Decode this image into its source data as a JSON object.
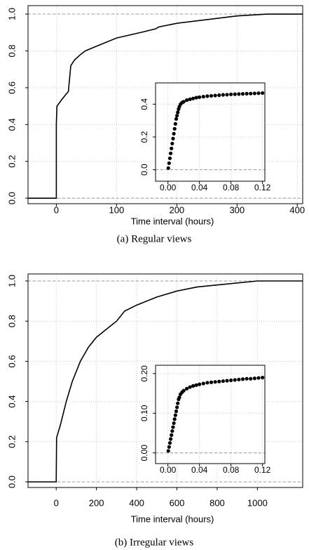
{
  "chart_data": [
    {
      "type": "line",
      "caption": "(a)  Regular views",
      "xlabel": "Time interval (hours)",
      "color": "#000000",
      "grid": true,
      "hlines": [
        0,
        1
      ],
      "x": [
        -47,
        0,
        0,
        1,
        10,
        20,
        24,
        30,
        40,
        48,
        70,
        100,
        140,
        165,
        170,
        200,
        250,
        300,
        350,
        409
      ],
      "values": [
        0,
        0,
        0.4,
        0.5,
        0.54,
        0.58,
        0.72,
        0.75,
        0.78,
        0.8,
        0.83,
        0.87,
        0.9,
        0.92,
        0.93,
        0.95,
        0.97,
        0.99,
        1.0,
        1.0
      ],
      "xlim": [
        -47,
        409
      ],
      "ylim": [
        -0.03,
        1.046
      ],
      "xticks": [
        0,
        100,
        200,
        300,
        400
      ],
      "yticks": [
        {
          "value": 0,
          "label": "0.0"
        },
        {
          "value": 0.2,
          "label": "0.2"
        },
        {
          "value": 0.4,
          "label": "0.4"
        },
        {
          "value": 0.6,
          "label": "0.6"
        },
        {
          "value": 0.8,
          "label": "0.8"
        },
        {
          "value": 1,
          "label": "1.0"
        }
      ]
    },
    {
      "type": "scatter",
      "color": "#000000",
      "grid": true,
      "hlines": [
        0
      ],
      "x": [
        0.0005,
        0.0015,
        0.0025,
        0.0035,
        0.0045,
        0.0055,
        0.0065,
        0.0075,
        0.0085,
        0.0095,
        0.0105,
        0.0115,
        0.0125,
        0.0135,
        0.0145,
        0.016,
        0.018,
        0.02,
        0.024,
        0.028,
        0.032,
        0.036,
        0.04,
        0.045,
        0.05,
        0.055,
        0.06,
        0.065,
        0.07,
        0.075,
        0.08,
        0.085,
        0.09,
        0.095,
        0.1,
        0.105,
        0.11,
        0.115,
        0.12
      ],
      "values": [
        0.01,
        0.04,
        0.07,
        0.1,
        0.13,
        0.16,
        0.19,
        0.22,
        0.25,
        0.28,
        0.31,
        0.33,
        0.35,
        0.37,
        0.385,
        0.4,
        0.41,
        0.415,
        0.425,
        0.43,
        0.435,
        0.44,
        0.443,
        0.446,
        0.449,
        0.451,
        0.453,
        0.455,
        0.457,
        0.458,
        0.46,
        0.461,
        0.462,
        0.463,
        0.464,
        0.465,
        0.466,
        0.467,
        0.468
      ],
      "xlim": [
        -0.0157,
        0.123
      ],
      "ylim": [
        -0.07,
        0.53
      ],
      "xticks": [
        {
          "value": 0,
          "label": "0.00"
        },
        {
          "value": 0.04,
          "label": "0.04"
        },
        {
          "value": 0.08,
          "label": "0.08"
        },
        {
          "value": 0.12,
          "label": "0.12"
        }
      ],
      "yticks": [
        {
          "value": 0,
          "label": "0.0"
        },
        0.2,
        0.4
      ]
    },
    {
      "type": "line",
      "caption": "(b)  Irregular views",
      "xlabel": "Time interval (hours)",
      "color": "#000000",
      "grid": true,
      "hlines": [
        0,
        1
      ],
      "x": [
        -140,
        0,
        2,
        20,
        50,
        80,
        120,
        160,
        200,
        250,
        300,
        340,
        400,
        500,
        600,
        700,
        800,
        1000,
        1225
      ],
      "values": [
        0,
        0,
        0.22,
        0.28,
        0.4,
        0.5,
        0.6,
        0.67,
        0.72,
        0.76,
        0.8,
        0.85,
        0.88,
        0.92,
        0.95,
        0.97,
        0.98,
        1.0,
        1.0
      ],
      "xlim": [
        -140,
        1225
      ],
      "ylim": [
        -0.028,
        1.035
      ],
      "xticks": [
        0,
        200,
        400,
        600,
        800,
        1000
      ],
      "yticks": [
        {
          "value": 0,
          "label": "0.0"
        },
        {
          "value": 0.2,
          "label": "0.2"
        },
        {
          "value": 0.4,
          "label": "0.4"
        },
        {
          "value": 0.6,
          "label": "0.6"
        },
        {
          "value": 0.8,
          "label": "0.8"
        },
        {
          "value": 1,
          "label": "1.0"
        }
      ]
    },
    {
      "type": "scatter",
      "color": "#000000",
      "grid": true,
      "hlines": [
        0
      ],
      "x": [
        0.0005,
        0.0015,
        0.0025,
        0.0035,
        0.0045,
        0.0055,
        0.0065,
        0.0075,
        0.0085,
        0.0095,
        0.0105,
        0.0115,
        0.0125,
        0.0135,
        0.0145,
        0.016,
        0.018,
        0.02,
        0.024,
        0.028,
        0.032,
        0.036,
        0.04,
        0.045,
        0.05,
        0.055,
        0.06,
        0.065,
        0.07,
        0.075,
        0.08,
        0.085,
        0.09,
        0.095,
        0.1,
        0.105,
        0.11,
        0.115,
        0.12
      ],
      "values": [
        0.005,
        0.015,
        0.025,
        0.035,
        0.045,
        0.055,
        0.065,
        0.075,
        0.085,
        0.095,
        0.105,
        0.115,
        0.125,
        0.135,
        0.14,
        0.148,
        0.153,
        0.157,
        0.162,
        0.166,
        0.169,
        0.171,
        0.173,
        0.175,
        0.177,
        0.178,
        0.179,
        0.18,
        0.181,
        0.182,
        0.183,
        0.184,
        0.185,
        0.186,
        0.187,
        0.187,
        0.188,
        0.189,
        0.19
      ],
      "xlim": [
        -0.0157,
        0.123
      ],
      "ylim": [
        -0.027,
        0.221
      ],
      "xticks": [
        {
          "value": 0,
          "label": "0.00"
        },
        {
          "value": 0.04,
          "label": "0.04"
        },
        {
          "value": 0.08,
          "label": "0.08"
        },
        {
          "value": 0.12,
          "label": "0.12"
        }
      ],
      "yticks": [
        {
          "value": 0,
          "label": "0.00"
        },
        {
          "value": 0.1,
          "label": "0.10"
        },
        {
          "value": 0.2,
          "label": "0.20"
        }
      ]
    }
  ]
}
